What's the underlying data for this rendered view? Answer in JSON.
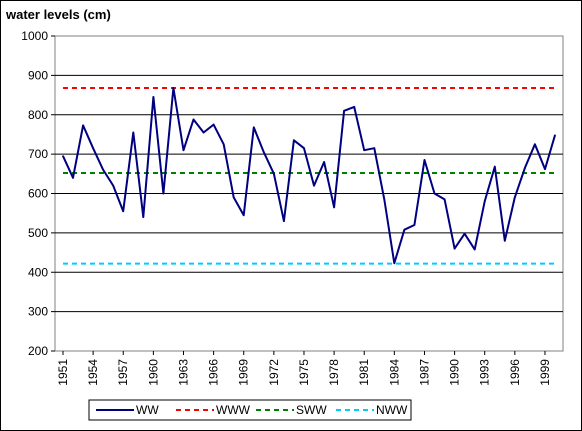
{
  "chart_data": {
    "type": "line",
    "title": "",
    "ylabel": "water levels (cm)",
    "xlabel": "",
    "ylim": [
      200,
      1000
    ],
    "yticks": [
      200,
      300,
      400,
      500,
      600,
      700,
      800,
      900,
      1000
    ],
    "xlim": [
      1951,
      2000
    ],
    "xtick_labels": [
      "1951",
      "1954",
      "1957",
      "1960",
      "1963",
      "1966",
      "1969",
      "1972",
      "1975",
      "1978",
      "1981",
      "1984",
      "1987",
      "1990",
      "1993",
      "1996",
      "1999"
    ],
    "grid": true,
    "legend_position": "bottom",
    "series": [
      {
        "name": "WW",
        "style": "solid",
        "color": "#000080",
        "x": [
          1951,
          1952,
          1953,
          1954,
          1955,
          1956,
          1957,
          1958,
          1959,
          1960,
          1961,
          1962,
          1963,
          1964,
          1965,
          1966,
          1967,
          1968,
          1969,
          1970,
          1971,
          1972,
          1973,
          1974,
          1975,
          1976,
          1977,
          1978,
          1979,
          1980,
          1981,
          1982,
          1983,
          1984,
          1985,
          1986,
          1987,
          1988,
          1989,
          1990,
          1991,
          1992,
          1993,
          1994,
          1995,
          1996,
          1997,
          1998,
          1999,
          2000
        ],
        "values": [
          695,
          640,
          773,
          715,
          660,
          620,
          555,
          755,
          540,
          845,
          600,
          868,
          710,
          788,
          755,
          775,
          725,
          590,
          545,
          768,
          705,
          650,
          530,
          735,
          715,
          620,
          680,
          565,
          810,
          820,
          710,
          715,
          585,
          423,
          508,
          520,
          685,
          600,
          585,
          460,
          498,
          458,
          580,
          668,
          480,
          590,
          665,
          725,
          662,
          748
        ]
      },
      {
        "name": "WWW",
        "style": "dashed",
        "color": "#ff0000",
        "constant": 868
      },
      {
        "name": "SWW",
        "style": "dashed",
        "color": "#008000",
        "constant": 652
      },
      {
        "name": "NWW",
        "style": "dashed",
        "color": "#00ccff",
        "constant": 422
      }
    ]
  }
}
